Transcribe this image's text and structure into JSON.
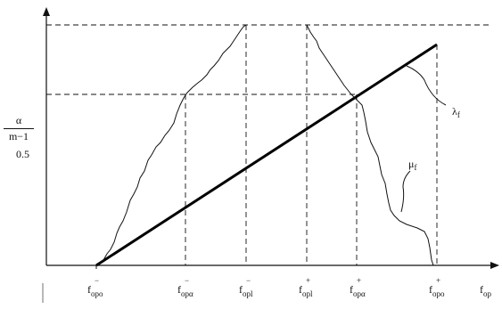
{
  "y_axis": {
    "fraction_numerator": "α",
    "fraction_denominator": "m−1",
    "half_label": "0.5"
  },
  "x_axis": {
    "label": {
      "base": "f",
      "sub": "op"
    },
    "ticks": [
      {
        "base": "f",
        "sup": "−",
        "sub": "opo"
      },
      {
        "base": "f",
        "sup": "−",
        "sub": "opα"
      },
      {
        "base": "f",
        "sup": "−",
        "sub": "opl"
      },
      {
        "base": "f",
        "sup": "+",
        "sub": "opl"
      },
      {
        "base": "f",
        "sup": "+",
        "sub": "opα"
      },
      {
        "base": "f",
        "sup": "+",
        "sub": "opo"
      }
    ]
  },
  "curves": {
    "lambda": {
      "base": "λ",
      "sub": "f"
    },
    "mu": {
      "base": "μ",
      "sub": "f"
    }
  }
}
